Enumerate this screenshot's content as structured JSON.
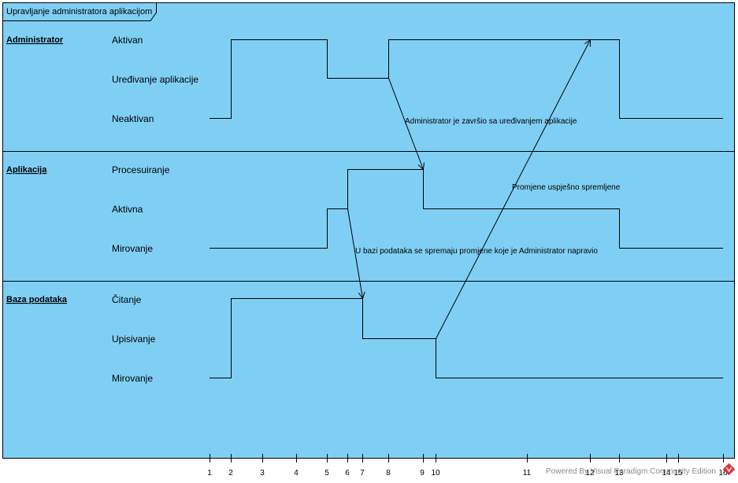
{
  "frame": {
    "title": "Upravljanje administratora aplikacijom",
    "background": "#7fcff5",
    "border": "#000000"
  },
  "lanes": [
    {
      "name": "Administrator",
      "states": [
        "Aktivan",
        "Uređivanje aplikacije",
        "Neaktivan"
      ]
    },
    {
      "name": "Aplikacija",
      "states": [
        "Procesuiranje",
        "Aktivna",
        "Mirovanje"
      ]
    },
    {
      "name": "Baza podataka",
      "states": [
        "Čitanje",
        "Upisivanje",
        "Mirovanje"
      ]
    }
  ],
  "timeline": {
    "ticks": [
      "1",
      "2",
      "3",
      "4",
      "5",
      "6",
      "7",
      "8",
      "9",
      "10",
      "11",
      "12",
      "13",
      "14",
      "15",
      "16"
    ]
  },
  "messages": [
    {
      "label": "Administrator je završio sa uređivanjem aplikacije",
      "from": "Administrator",
      "to": "Aplikacija"
    },
    {
      "label": "Promjene uspješno spremljene",
      "from": "Baza podataka",
      "to": "Administrator"
    },
    {
      "label": "U bazi podataka se spremaju promjene koje je Administrator napravio",
      "from": "Aplikacija",
      "to": "Baza podataka"
    }
  ],
  "watermark": {
    "text": "Powered By Visual Paradigm Community Edition",
    "logo_color": "#d9383a"
  }
}
